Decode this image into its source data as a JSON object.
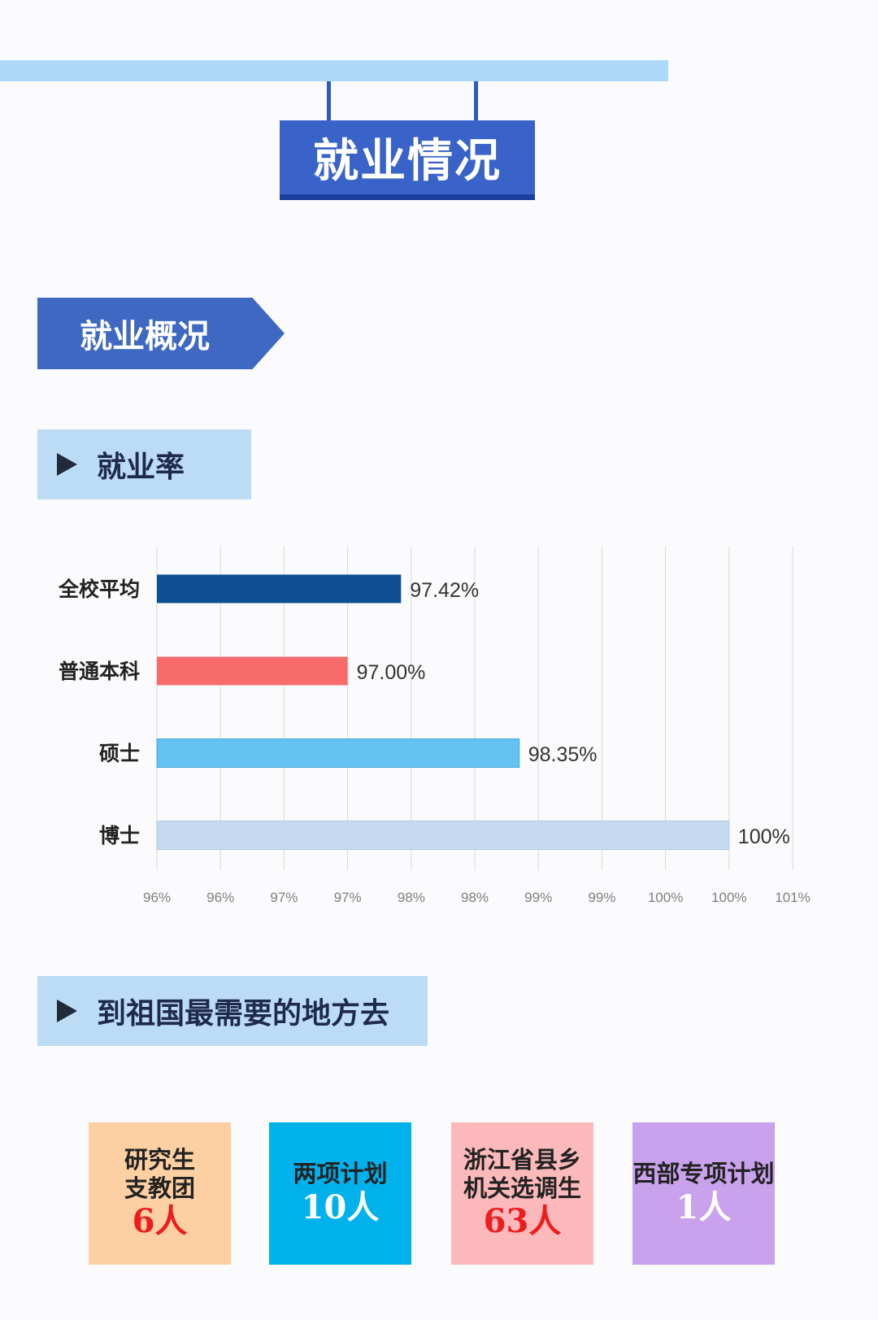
{
  "header": {
    "title": "就业情况"
  },
  "banner": {
    "label": "就业概况"
  },
  "section_rate": {
    "label": "就业率"
  },
  "section_west": {
    "label": "到祖国最需要的地方去"
  },
  "chart_data": {
    "type": "bar",
    "orientation": "horizontal",
    "categories": [
      "全校平均",
      "普通本科",
      "硕士",
      "博士"
    ],
    "values": [
      97.42,
      97.0,
      98.35,
      100
    ],
    "value_labels": [
      "97.42%",
      "97.00%",
      "98.35%",
      "100%"
    ],
    "colors": [
      "#0e4f94",
      "#f86b6b",
      "#63c2f1",
      "#c5d9f1"
    ],
    "xlim": [
      95.5,
      100.5
    ],
    "xtick_labels": [
      "96%",
      "96%",
      "97%",
      "97%",
      "98%",
      "98%",
      "99%",
      "99%",
      "100%",
      "100%",
      "101%"
    ],
    "grid": true,
    "title": "",
    "xlabel": "",
    "ylabel": ""
  },
  "cards": [
    {
      "lines": [
        "研究生",
        "支教团"
      ],
      "count": "6人",
      "bg": "#fdd0a4",
      "count_color": "#ee1c1c"
    },
    {
      "lines": [
        "两项计划"
      ],
      "count": "10人",
      "bg": "#00b1ec",
      "count_color": "#ffffff"
    },
    {
      "lines": [
        "浙江省县乡",
        "机关选调生"
      ],
      "count": "63人",
      "bg": "#fcb9bb",
      "count_color": "#ee1c1c"
    },
    {
      "lines": [
        "西部专项计划"
      ],
      "count": "1人",
      "bg": "#c9a1ec",
      "count_color": "#ffffff"
    }
  ]
}
